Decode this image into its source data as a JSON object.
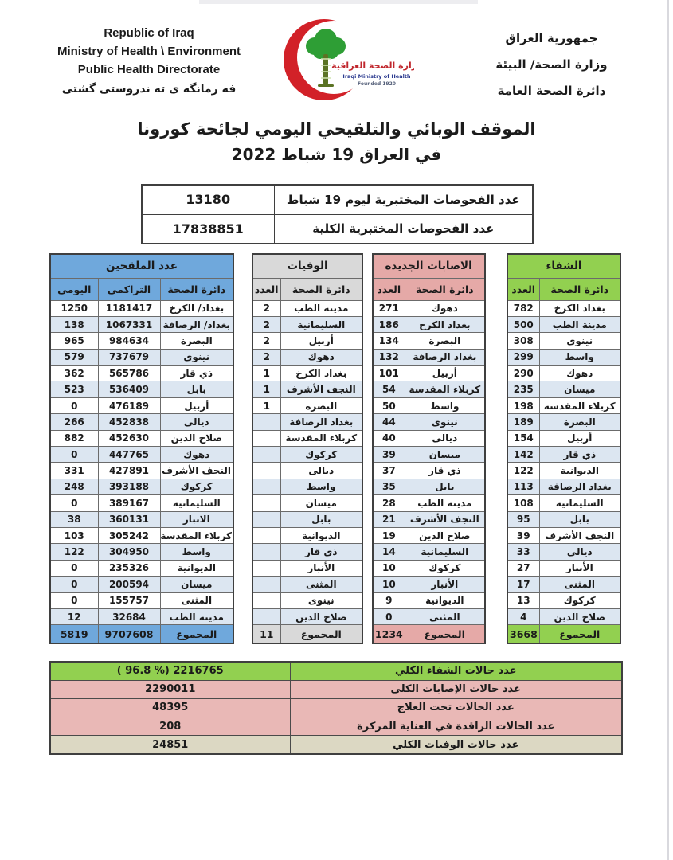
{
  "colors": {
    "vaccinated": "#6fa8dc",
    "deaths": "#d9d9d9",
    "new_infections": "#e5a9a7",
    "recoveries": "#92d050",
    "row_stripe": "#dce6f1",
    "summary_pink": "#e9b8b6",
    "summary_green": "#92d050",
    "summary_beige": "#dcd8c3",
    "crescent_red": "#d22128",
    "tree_green": "#2e9e35"
  },
  "header": {
    "english_lines": [
      "Republic of Iraq",
      "Ministry of Health \\ Environment",
      "Public Health Directorate"
    ],
    "kurdish_line": "فه رمانگه ی ته ندروستی گشتی",
    "arabic_lines": [
      "جمهورية العراق",
      "وزارة الصحة/ البيئة",
      "دائرة الصحة العامة"
    ],
    "logo": {
      "arabic_name": "وزارة الصحة العراقية",
      "english_name": "Iraqi Ministry of Health",
      "founded": "Founded 1920"
    }
  },
  "title": {
    "line1": "الموقف الوبائي والتلقيحي اليومي لجائحة كورونا",
    "line2": "في العراق  19  شباط 2022"
  },
  "tests_table": {
    "rows": [
      {
        "label": "عدد الفحوصات المختبرية  ليوم  19  شباط",
        "value": "13180"
      },
      {
        "label": "عدد الفحوصات المختبرية الكلية",
        "value": "17838851"
      }
    ]
  },
  "main_table": {
    "vaccinated": {
      "title": "عدد الملقحين",
      "columns": {
        "daily": "اليومي",
        "cumulative": "التراكمي",
        "directorate": "دائرة الصحة"
      },
      "rows": [
        {
          "directorate": "بغداد/ الكرخ",
          "cumulative": "1181417",
          "daily": "1250"
        },
        {
          "directorate": "بغداد/ الرصافة",
          "cumulative": "1067331",
          "daily": "138"
        },
        {
          "directorate": "البصرة",
          "cumulative": "984634",
          "daily": "965"
        },
        {
          "directorate": "نينوى",
          "cumulative": "737679",
          "daily": "579"
        },
        {
          "directorate": "ذي قار",
          "cumulative": "565786",
          "daily": "362"
        },
        {
          "directorate": "بابل",
          "cumulative": "536409",
          "daily": "523"
        },
        {
          "directorate": "أربيل",
          "cumulative": "476189",
          "daily": "0"
        },
        {
          "directorate": "ديالى",
          "cumulative": "452838",
          "daily": "266"
        },
        {
          "directorate": "صلاح الدين",
          "cumulative": "452630",
          "daily": "882"
        },
        {
          "directorate": "دهوك",
          "cumulative": "447765",
          "daily": "0"
        },
        {
          "directorate": "النجف الأشرف",
          "cumulative": "427891",
          "daily": "331"
        },
        {
          "directorate": "كركوك",
          "cumulative": "393188",
          "daily": "248"
        },
        {
          "directorate": "السليمانية",
          "cumulative": "389167",
          "daily": "0"
        },
        {
          "directorate": "الانبار",
          "cumulative": "360131",
          "daily": "38"
        },
        {
          "directorate": "كربلاء المقدسة",
          "cumulative": "305242",
          "daily": "103"
        },
        {
          "directorate": "واسط",
          "cumulative": "304950",
          "daily": "122"
        },
        {
          "directorate": "الديوانية",
          "cumulative": "235326",
          "daily": "0"
        },
        {
          "directorate": "ميسان",
          "cumulative": "200594",
          "daily": "0"
        },
        {
          "directorate": "المثنى",
          "cumulative": "155757",
          "daily": "0"
        },
        {
          "directorate": "مدينة الطب",
          "cumulative": "32684",
          "daily": "12"
        }
      ],
      "total_label": "المجموع",
      "total_cumulative": "9707608",
      "total_daily": "5819"
    },
    "deaths": {
      "title": "الوفيات",
      "columns": {
        "count": "العدد",
        "directorate": "دائرة الصحة"
      },
      "rows": [
        {
          "directorate": "مدينة الطب",
          "count": "2"
        },
        {
          "directorate": "السليمانية",
          "count": "2"
        },
        {
          "directorate": "أربيل",
          "count": "2"
        },
        {
          "directorate": "دهوك",
          "count": "2"
        },
        {
          "directorate": "بغداد الكرخ",
          "count": "1"
        },
        {
          "directorate": "النجف الأشرف",
          "count": "1"
        },
        {
          "directorate": "البصرة",
          "count": "1"
        },
        {
          "directorate": "بغداد الرصافة",
          "count": ""
        },
        {
          "directorate": "كربلاء المقدسة",
          "count": ""
        },
        {
          "directorate": "كركوك",
          "count": ""
        },
        {
          "directorate": "ديالى",
          "count": ""
        },
        {
          "directorate": "واسط",
          "count": ""
        },
        {
          "directorate": "ميسان",
          "count": ""
        },
        {
          "directorate": "بابل",
          "count": ""
        },
        {
          "directorate": "الديوانية",
          "count": ""
        },
        {
          "directorate": "ذي قار",
          "count": ""
        },
        {
          "directorate": "الأنبار",
          "count": ""
        },
        {
          "directorate": "المثنى",
          "count": ""
        },
        {
          "directorate": "نينوى",
          "count": ""
        },
        {
          "directorate": "صلاح الدين",
          "count": ""
        }
      ],
      "total_label": "المجموع",
      "total": "11"
    },
    "new_infections": {
      "title": "الاصابات الجديدة",
      "columns": {
        "count": "العدد",
        "directorate": "دائرة الصحة"
      },
      "rows": [
        {
          "directorate": "دهوك",
          "count": "271"
        },
        {
          "directorate": "بغداد الكرخ",
          "count": "186"
        },
        {
          "directorate": "البصرة",
          "count": "134"
        },
        {
          "directorate": "بغداد الرصافة",
          "count": "132"
        },
        {
          "directorate": "أربيل",
          "count": "101"
        },
        {
          "directorate": "كربلاء المقدسة",
          "count": "54"
        },
        {
          "directorate": "واسط",
          "count": "50"
        },
        {
          "directorate": "نينوى",
          "count": "44"
        },
        {
          "directorate": "ديالى",
          "count": "40"
        },
        {
          "directorate": "ميسان",
          "count": "39"
        },
        {
          "directorate": "ذي قار",
          "count": "37"
        },
        {
          "directorate": "بابل",
          "count": "35"
        },
        {
          "directorate": "مدينة الطب",
          "count": "28"
        },
        {
          "directorate": "النجف الأشرف",
          "count": "21"
        },
        {
          "directorate": "صلاح الدين",
          "count": "19"
        },
        {
          "directorate": "السليمانية",
          "count": "14"
        },
        {
          "directorate": "كركوك",
          "count": "10"
        },
        {
          "directorate": "الأنبار",
          "count": "10"
        },
        {
          "directorate": "الديوانية",
          "count": "9"
        },
        {
          "directorate": "المثنى",
          "count": "0"
        }
      ],
      "total_label": "المجموع",
      "total": "1234"
    },
    "recoveries": {
      "title": "الشفاء",
      "columns": {
        "count": "العدد",
        "directorate": "دائرة الصحة"
      },
      "rows": [
        {
          "directorate": "بغداد الكرخ",
          "count": "782"
        },
        {
          "directorate": "مدينة الطب",
          "count": "500"
        },
        {
          "directorate": "نينوى",
          "count": "308"
        },
        {
          "directorate": "واسط",
          "count": "299"
        },
        {
          "directorate": "دهوك",
          "count": "290"
        },
        {
          "directorate": "ميسان",
          "count": "235"
        },
        {
          "directorate": "كربلاء المقدسة",
          "count": "198"
        },
        {
          "directorate": "البصرة",
          "count": "189"
        },
        {
          "directorate": "أربيل",
          "count": "154"
        },
        {
          "directorate": "ذي قار",
          "count": "142"
        },
        {
          "directorate": "الديوانية",
          "count": "122"
        },
        {
          "directorate": "بغداد الرصافة",
          "count": "113"
        },
        {
          "directorate": "السليمانية",
          "count": "108"
        },
        {
          "directorate": "بابل",
          "count": "95"
        },
        {
          "directorate": "النجف الأشرف",
          "count": "39"
        },
        {
          "directorate": "ديالى",
          "count": "33"
        },
        {
          "directorate": "الأنبار",
          "count": "27"
        },
        {
          "directorate": "المثنى",
          "count": "17"
        },
        {
          "directorate": "كركوك",
          "count": "13"
        },
        {
          "directorate": "صلاح الدين",
          "count": "4"
        }
      ],
      "total_label": "المجموع",
      "total": "3668"
    }
  },
  "summary_table": {
    "rows": [
      {
        "label": "عدد حالات الشفاء الكلي",
        "value": "( 96.8 %)  2216765",
        "color_key": "summary_green"
      },
      {
        "label": "عدد حالات الإصابات الكلي",
        "value": "2290011",
        "color_key": "summary_pink"
      },
      {
        "label": "عدد الحالات تحت العلاج",
        "value": "48395",
        "color_key": "summary_pink"
      },
      {
        "label": "عدد الحالات الراقدة في العناية المركزة",
        "value": "208",
        "color_key": "summary_pink"
      },
      {
        "label": "عدد حالات الوفيات الكلي",
        "value": "24851",
        "color_key": "summary_beige"
      }
    ]
  }
}
